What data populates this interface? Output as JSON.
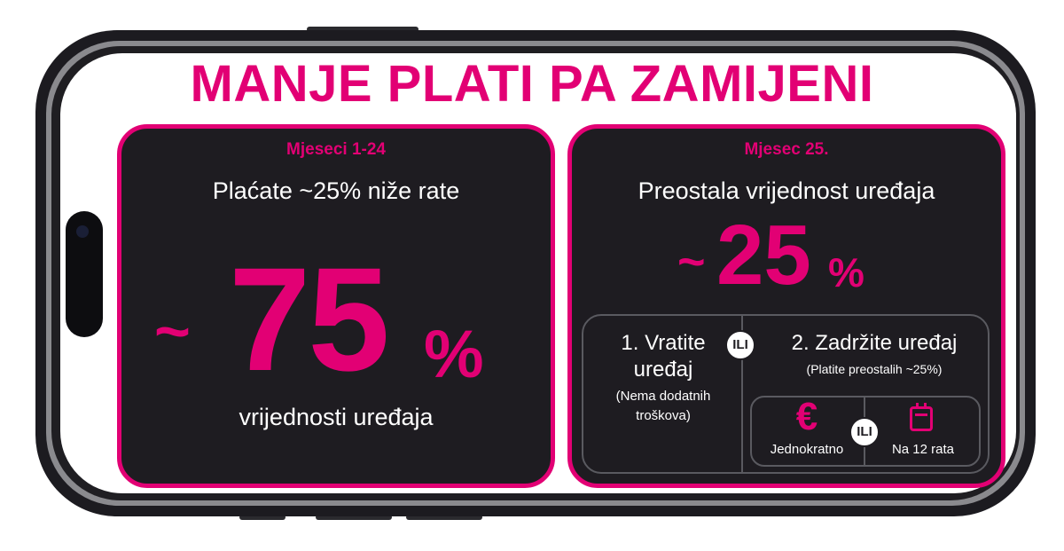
{
  "headline": "MANJE PLATI PA ZAMIJENI",
  "left_panel": {
    "period": "Mjeseci 1-24",
    "title": "Plaćate ~25% niže rate",
    "tilde": "~",
    "value": "75",
    "percent_sign": "%",
    "caption": "vrijednosti uređaja"
  },
  "right_panel": {
    "period": "Mjesec  25.",
    "title": "Preostala vrijednost uređaja",
    "tilde": "~",
    "value": "25",
    "percent_sign": "%",
    "option1": {
      "title_line1": "1. Vratite",
      "title_line2": "uređaj",
      "note_line1": "(Nema dodatnih",
      "note_line2": "troškova)"
    },
    "or_label": "ILI",
    "option2": {
      "title": "2. Zadržite uređaj",
      "note": "(Platite preostalih ~25%)",
      "sub_or_label": "ILI",
      "choice_a_symbol": "€",
      "choice_a_label": "Jednokratno",
      "choice_b_label": "Na 12 rata"
    }
  },
  "colors": {
    "accent": "#e20074",
    "panel": "#1e1c21",
    "phone": "#1c1b20",
    "text_light": "#ffffff"
  },
  "icons": [
    "euro-icon",
    "calendar-icon"
  ]
}
